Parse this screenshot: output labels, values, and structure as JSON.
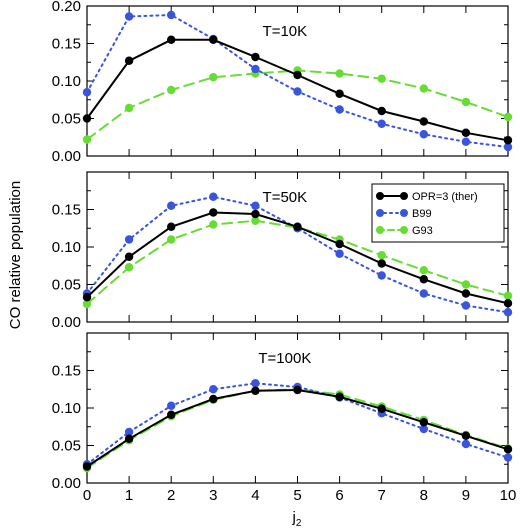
{
  "chart_data": {
    "type": "line",
    "ylabel": "CO relative population",
    "xlabel_main": "j",
    "xlabel_sub": "2",
    "x": [
      0,
      1,
      2,
      3,
      4,
      5,
      6,
      7,
      8,
      9,
      10
    ],
    "xticks": [
      "0",
      "1",
      "2",
      "3",
      "4",
      "5",
      "6",
      "7",
      "8",
      "9",
      "10"
    ],
    "xlim": [
      0,
      10
    ],
    "legend": {
      "placement": "top-right of middle panel",
      "entries": [
        "OPR=3 (ther)",
        "B99",
        "G93"
      ]
    },
    "styles": [
      {
        "color": "#000000",
        "line": "solid"
      },
      {
        "color": "#3a55dd",
        "line": "dotted"
      },
      {
        "color": "#66dd33",
        "line": "dashed"
      }
    ],
    "panels": [
      {
        "title": "T=10K",
        "ylim": [
          0,
          0.2
        ],
        "yticks": [
          "0.00",
          "0.05",
          "0.10",
          "0.15",
          "0.20"
        ],
        "series": [
          {
            "name": "OPR=3 (ther)",
            "values": [
              0.05,
              0.127,
              0.155,
              0.155,
              0.132,
              0.108,
              0.083,
              0.06,
              0.046,
              0.031,
              0.021
            ]
          },
          {
            "name": "B99",
            "values": [
              0.085,
              0.186,
              0.188,
              0.156,
              0.116,
              0.086,
              0.062,
              0.043,
              0.029,
              0.019,
              0.012
            ]
          },
          {
            "name": "G93",
            "values": [
              0.022,
              0.064,
              0.088,
              0.105,
              0.11,
              0.114,
              0.11,
              0.103,
              0.09,
              0.072,
              0.052
            ]
          }
        ]
      },
      {
        "title": "T=50K",
        "ylim": [
          0,
          0.2
        ],
        "yticks": [
          "0.00",
          "0.05",
          "0.10",
          "0.15"
        ],
        "series": [
          {
            "name": "OPR=3 (ther)",
            "values": [
              0.033,
              0.087,
              0.127,
              0.146,
              0.144,
              0.127,
              0.104,
              0.078,
              0.057,
              0.038,
              0.025
            ]
          },
          {
            "name": "B99",
            "values": [
              0.038,
              0.11,
              0.155,
              0.167,
              0.155,
              0.125,
              0.091,
              0.062,
              0.038,
              0.022,
              0.013
            ]
          },
          {
            "name": "G93",
            "values": [
              0.024,
              0.073,
              0.11,
              0.13,
              0.135,
              0.126,
              0.11,
              0.089,
              0.069,
              0.05,
              0.035
            ]
          }
        ]
      },
      {
        "title": "T=100K",
        "ylim": [
          0,
          0.2
        ],
        "yticks": [
          "0.00",
          "0.05",
          "0.10",
          "0.15"
        ],
        "series": [
          {
            "name": "OPR=3 (ther)",
            "values": [
              0.022,
              0.059,
              0.091,
              0.112,
              0.123,
              0.124,
              0.115,
              0.099,
              0.081,
              0.063,
              0.045
            ]
          },
          {
            "name": "B99",
            "values": [
              0.025,
              0.068,
              0.103,
              0.125,
              0.133,
              0.128,
              0.114,
              0.093,
              0.072,
              0.052,
              0.034
            ]
          },
          {
            "name": "G93",
            "values": [
              0.02,
              0.057,
              0.089,
              0.111,
              0.123,
              0.125,
              0.118,
              0.102,
              0.084,
              0.064,
              0.046
            ]
          }
        ]
      }
    ]
  }
}
